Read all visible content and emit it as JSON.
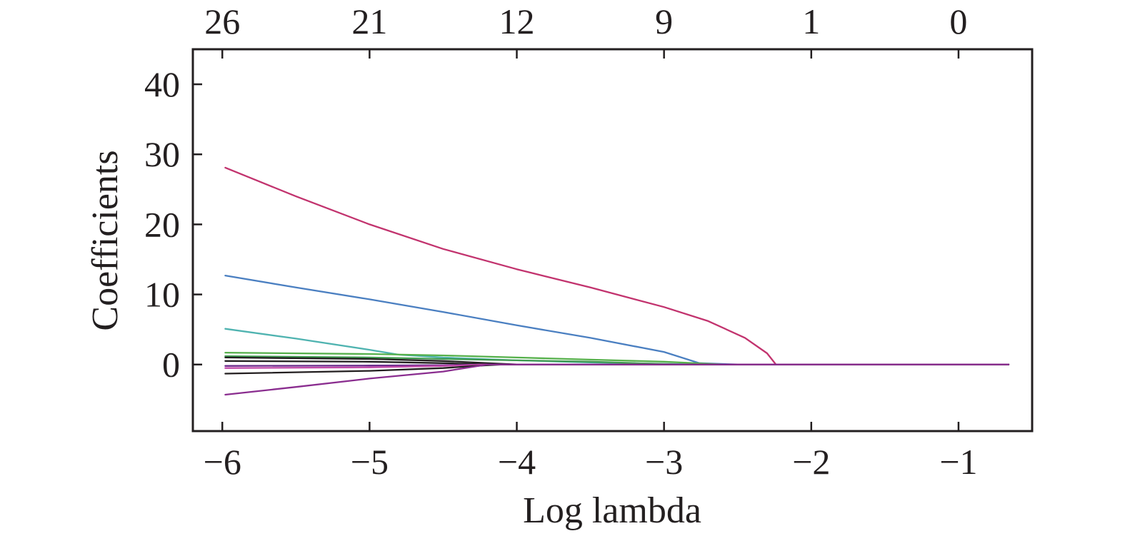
{
  "chart_data": {
    "type": "line",
    "xlabel": "Log lambda",
    "ylabel": "Coefficients",
    "xlim": [
      -6.2,
      -0.5
    ],
    "ylim": [
      -9.5,
      45
    ],
    "x_ticks": [
      -6,
      -5,
      -4,
      -3,
      -2,
      -1
    ],
    "x_tick_labels": [
      "−6",
      "−5",
      "−4",
      "−3",
      "−2",
      "−1"
    ],
    "y_ticks": [
      0,
      10,
      20,
      30,
      40
    ],
    "y_tick_labels": [
      "0",
      "10",
      "20",
      "30",
      "40"
    ],
    "top_ticks": [
      -6,
      -5,
      -4,
      -3,
      -2,
      -1
    ],
    "top_tick_labels": [
      "26",
      "21",
      "12",
      "9",
      "1",
      "0"
    ],
    "grid": false,
    "series": [
      {
        "color": "#c2336e",
        "points": [
          [
            -5.98,
            28.1
          ],
          [
            -5.5,
            24.0
          ],
          [
            -5.0,
            20.0
          ],
          [
            -4.5,
            16.5
          ],
          [
            -4.0,
            13.6
          ],
          [
            -3.5,
            11.0
          ],
          [
            -3.0,
            8.2
          ],
          [
            -2.7,
            6.2
          ],
          [
            -2.45,
            3.8
          ],
          [
            -2.3,
            1.6
          ],
          [
            -2.24,
            0.0
          ],
          [
            -0.66,
            0.0
          ]
        ]
      },
      {
        "color": "#4a7fc1",
        "points": [
          [
            -5.98,
            12.7
          ],
          [
            -5.5,
            11.0
          ],
          [
            -5.0,
            9.3
          ],
          [
            -4.5,
            7.5
          ],
          [
            -4.0,
            5.6
          ],
          [
            -3.5,
            3.8
          ],
          [
            -3.0,
            1.8
          ],
          [
            -2.76,
            0.2
          ],
          [
            -2.5,
            0.0
          ],
          [
            -0.66,
            0.0
          ]
        ]
      },
      {
        "color": "#4fb3b0",
        "points": [
          [
            -5.98,
            5.1
          ],
          [
            -5.5,
            3.7
          ],
          [
            -5.0,
            2.1
          ],
          [
            -4.8,
            1.4
          ],
          [
            -4.5,
            1.0
          ],
          [
            -4.0,
            0.6
          ],
          [
            -3.5,
            0.3
          ],
          [
            -3.0,
            0.1
          ],
          [
            -2.7,
            0.0
          ],
          [
            -0.66,
            0.0
          ]
        ]
      },
      {
        "color": "#55b04a",
        "points": [
          [
            -5.98,
            1.7
          ],
          [
            -5.0,
            1.5
          ],
          [
            -4.5,
            1.3
          ],
          [
            -4.0,
            1.0
          ],
          [
            -3.5,
            0.7
          ],
          [
            -3.0,
            0.4
          ],
          [
            -2.6,
            0.0
          ],
          [
            -0.66,
            0.0
          ]
        ]
      },
      {
        "color": "#3f9a4f",
        "points": [
          [
            -5.98,
            1.2
          ],
          [
            -5.0,
            1.0
          ],
          [
            -4.5,
            0.8
          ],
          [
            -4.0,
            0.6
          ],
          [
            -3.5,
            0.4
          ],
          [
            -2.9,
            0.0
          ],
          [
            -0.66,
            0.0
          ]
        ]
      },
      {
        "color": "#231f20",
        "points": [
          [
            -5.98,
            1.0
          ],
          [
            -5.0,
            0.8
          ],
          [
            -4.5,
            0.5
          ],
          [
            -4.2,
            0.2
          ],
          [
            -4.0,
            0.0
          ],
          [
            -0.66,
            0.0
          ]
        ]
      },
      {
        "color": "#231f20",
        "points": [
          [
            -5.98,
            0.5
          ],
          [
            -5.0,
            0.4
          ],
          [
            -4.5,
            0.2
          ],
          [
            -4.2,
            0.0
          ],
          [
            -0.66,
            0.0
          ]
        ]
      },
      {
        "color": "#6c2c8c",
        "points": [
          [
            -5.98,
            -0.2
          ],
          [
            -5.0,
            -0.15
          ],
          [
            -4.5,
            -0.1
          ],
          [
            -4.2,
            0.0
          ],
          [
            -0.66,
            0.0
          ]
        ]
      },
      {
        "color": "#c048a8",
        "points": [
          [
            -5.98,
            -0.5
          ],
          [
            -5.0,
            -0.4
          ],
          [
            -4.5,
            -0.2
          ],
          [
            -4.2,
            0.0
          ],
          [
            -0.66,
            0.0
          ]
        ]
      },
      {
        "color": "#231f20",
        "points": [
          [
            -5.98,
            -1.3
          ],
          [
            -5.0,
            -0.9
          ],
          [
            -4.5,
            -0.5
          ],
          [
            -4.2,
            -0.1
          ],
          [
            -4.1,
            0.0
          ],
          [
            -0.66,
            0.0
          ]
        ]
      },
      {
        "color": "#8a2d8f",
        "points": [
          [
            -5.98,
            -4.3
          ],
          [
            -5.5,
            -3.2
          ],
          [
            -5.0,
            -2.0
          ],
          [
            -4.5,
            -1.0
          ],
          [
            -4.2,
            0.0
          ],
          [
            -0.66,
            0.0
          ]
        ]
      }
    ]
  }
}
